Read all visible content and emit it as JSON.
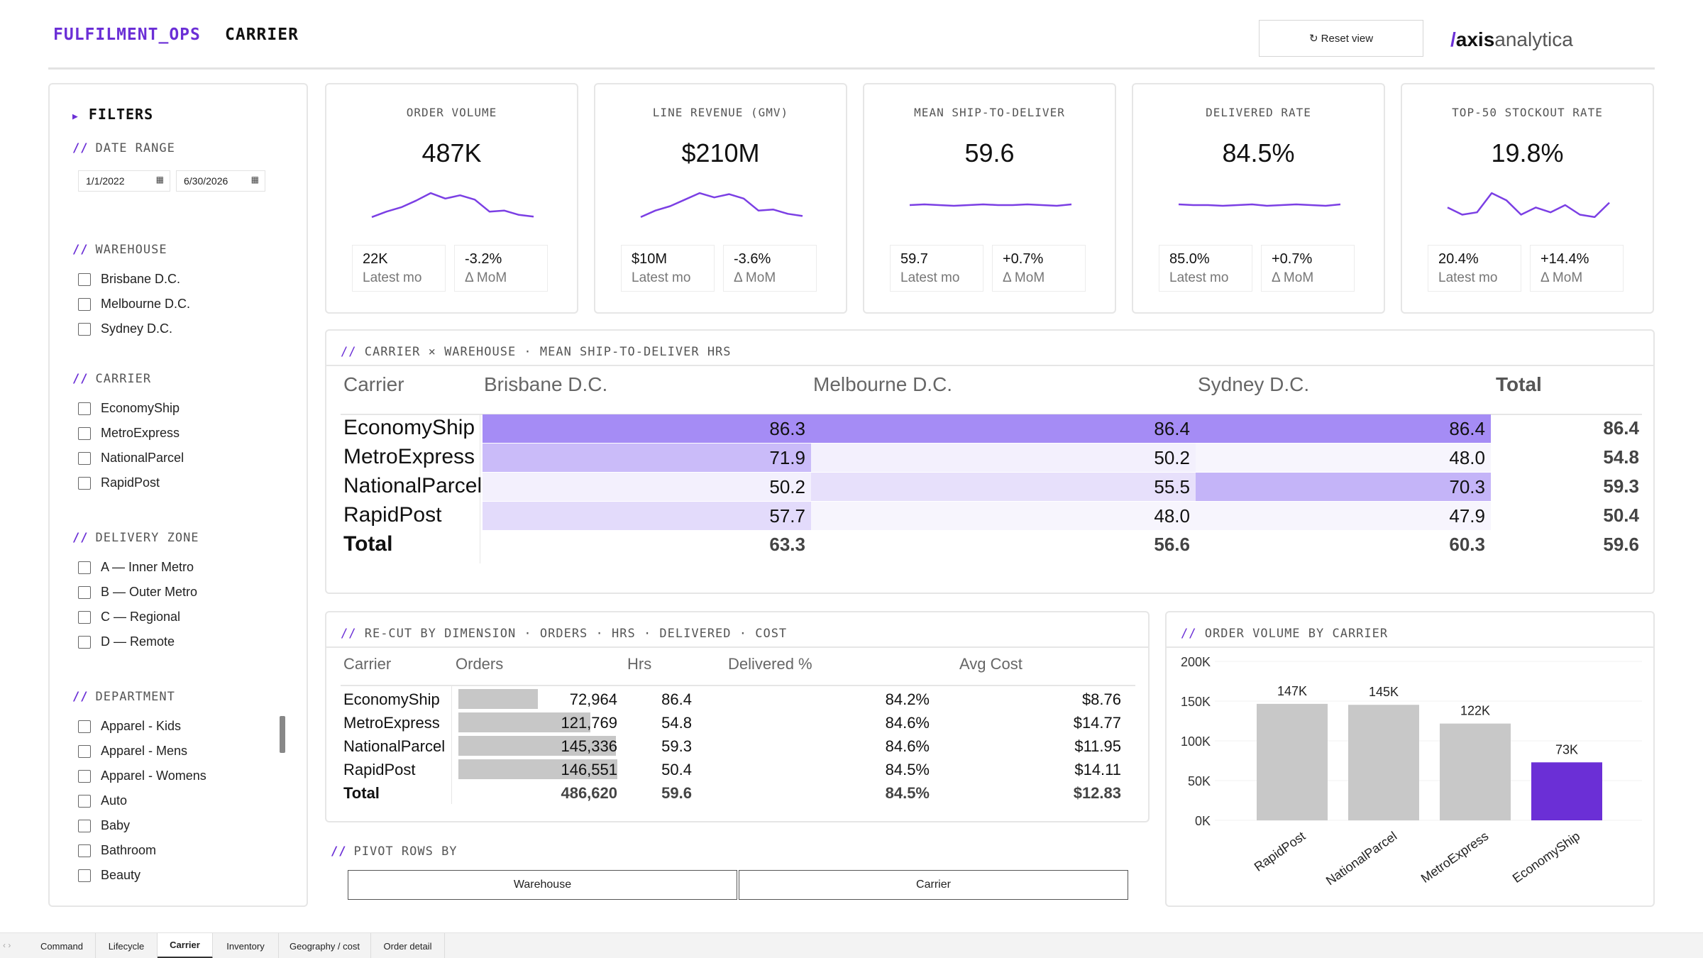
{
  "header": {
    "brand": "FULFILMENT_OPS",
    "page": "CARRIER",
    "reset_label": "↻ Reset view",
    "logo": {
      "slash": "/",
      "bold": "axis",
      "light": "analytica"
    }
  },
  "filters": {
    "title": "FILTERS",
    "date_range": {
      "label": "DATE RANGE",
      "start": "1/1/2022",
      "end": "6/30/2026"
    },
    "warehouse": {
      "label": "WAREHOUSE",
      "items": [
        "Brisbane D.C.",
        "Melbourne D.C.",
        "Sydney D.C."
      ]
    },
    "carrier": {
      "label": "CARRIER",
      "items": [
        "EconomyShip",
        "MetroExpress",
        "NationalParcel",
        "RapidPost"
      ]
    },
    "delivery_zone": {
      "label": "DELIVERY ZONE",
      "items": [
        "A — Inner Metro",
        "B — Outer Metro",
        "C — Regional",
        "D — Remote"
      ]
    },
    "department": {
      "label": "DEPARTMENT",
      "items": [
        "Apparel - Kids",
        "Apparel - Mens",
        "Apparel - Womens",
        "Auto",
        "Baby",
        "Bathroom",
        "Beauty"
      ]
    }
  },
  "kpis": [
    {
      "title": "ORDER VOLUME",
      "value": "487K",
      "latest": "22K",
      "latest_label": "Latest mo",
      "mom": "-3.2%",
      "mom_label": "Δ MoM",
      "spark": [
        52,
        62,
        70,
        82,
        96,
        86,
        92,
        84,
        62,
        64,
        56,
        53
      ]
    },
    {
      "title": "LINE REVENUE (GMV)",
      "value": "$210M",
      "latest": "$10M",
      "latest_label": "Latest mo",
      "mom": "-3.6%",
      "mom_label": "Δ MoM",
      "spark": [
        50,
        62,
        70,
        82,
        94,
        86,
        92,
        84,
        62,
        64,
        56,
        52
      ]
    },
    {
      "title": "MEAN SHIP-TO-DELIVER",
      "value": "59.6",
      "latest": "59.7",
      "latest_label": "Latest mo",
      "mom": "+0.7%",
      "mom_label": "Δ MoM",
      "spark": [
        59.6,
        59.7,
        59.6,
        59.5,
        59.6,
        59.7,
        59.6,
        59.6,
        59.7,
        59.6,
        59.5,
        59.7
      ]
    },
    {
      "title": "DELIVERED RATE",
      "value": "84.5%",
      "latest": "85.0%",
      "latest_label": "Latest mo",
      "mom": "+0.7%",
      "mom_label": "Δ MoM",
      "spark": [
        84.6,
        84.5,
        84.5,
        84.4,
        84.5,
        84.6,
        84.4,
        84.5,
        84.6,
        84.5,
        84.4,
        84.6
      ]
    },
    {
      "title": "TOP-50 STOCKOUT RATE",
      "value": "19.8%",
      "latest": "20.4%",
      "latest_label": "Latest mo",
      "mom": "+14.4%",
      "mom_label": "Δ MoM",
      "spark": [
        20,
        17,
        18,
        26,
        23,
        17,
        20,
        18,
        21,
        17,
        16,
        22
      ]
    }
  ],
  "matrix": {
    "title": "CARRIER × WAREHOUSE · MEAN SHIP-TO-DELIVER HRS",
    "headers": [
      "Carrier",
      "Brisbane D.C.",
      "Melbourne D.C.",
      "Sydney D.C.",
      "Total"
    ],
    "rows": [
      {
        "name": "EconomyShip",
        "values": [
          "86.3",
          "86.4",
          "86.4"
        ],
        "total": "86.4",
        "intensity": [
          1.0,
          1.0,
          1.0
        ]
      },
      {
        "name": "MetroExpress",
        "values": [
          "71.9",
          "50.2",
          "48.0"
        ],
        "total": "54.8",
        "intensity": [
          0.55,
          0.05,
          0.0
        ]
      },
      {
        "name": "NationalParcel",
        "values": [
          "50.2",
          "55.5",
          "70.3"
        ],
        "total": "59.3",
        "intensity": [
          0.05,
          0.2,
          0.62
        ]
      },
      {
        "name": "RapidPost",
        "values": [
          "57.7",
          "48.0",
          "47.9"
        ],
        "total": "50.4",
        "intensity": [
          0.25,
          0.0,
          0.0
        ]
      }
    ],
    "total_row": {
      "name": "Total",
      "values": [
        "63.3",
        "56.6",
        "60.3"
      ],
      "total": "59.6"
    }
  },
  "recut": {
    "title": "RE-CUT BY DIMENSION · ORDERS · HRS · DELIVERED · COST",
    "headers": [
      "Carrier",
      "Orders",
      "Hrs",
      "Delivered %",
      "Avg Cost"
    ],
    "rows": [
      {
        "name": "EconomyShip",
        "orders": "72,964",
        "orders_frac": 0.498,
        "hrs": "86.4",
        "delivered": "84.2%",
        "cost": "$8.76"
      },
      {
        "name": "MetroExpress",
        "orders": "121,769",
        "orders_frac": 0.831,
        "hrs": "54.8",
        "delivered": "84.6%",
        "cost": "$14.77"
      },
      {
        "name": "NationalParcel",
        "orders": "145,336",
        "orders_frac": 0.992,
        "hrs": "59.3",
        "delivered": "84.6%",
        "cost": "$11.95"
      },
      {
        "name": "RapidPost",
        "orders": "146,551",
        "orders_frac": 1.0,
        "hrs": "50.4",
        "delivered": "84.5%",
        "cost": "$14.11"
      }
    ],
    "total": {
      "name": "Total",
      "orders": "486,620",
      "hrs": "59.6",
      "delivered": "84.5%",
      "cost": "$12.83"
    }
  },
  "pivot": {
    "label": "PIVOT ROWS BY",
    "options": [
      "Warehouse",
      "Carrier"
    ]
  },
  "chart_data": {
    "type": "bar",
    "title": "ORDER VOLUME BY CARRIER",
    "categories": [
      "RapidPost",
      "NationalParcel",
      "MetroExpress",
      "EconomyShip"
    ],
    "values": [
      146551,
      145336,
      121769,
      72964
    ],
    "labels": [
      "147K",
      "145K",
      "122K",
      "73K"
    ],
    "ylim": [
      0,
      200000
    ],
    "yticks": [
      "0K",
      "50K",
      "100K",
      "150K",
      "200K"
    ],
    "highlight": "EconomyShip",
    "colors": {
      "default": "#c8c8c8",
      "highlight": "#6b2fd6"
    }
  },
  "tabs": [
    "Command",
    "Lifecycle",
    "Carrier",
    "Inventory",
    "Geography / cost",
    "Order detail"
  ],
  "active_tab": "Carrier",
  "colors": {
    "accent": "#6b2fd6",
    "spark": "#7b3fe4",
    "heat": "#a58cf5"
  }
}
